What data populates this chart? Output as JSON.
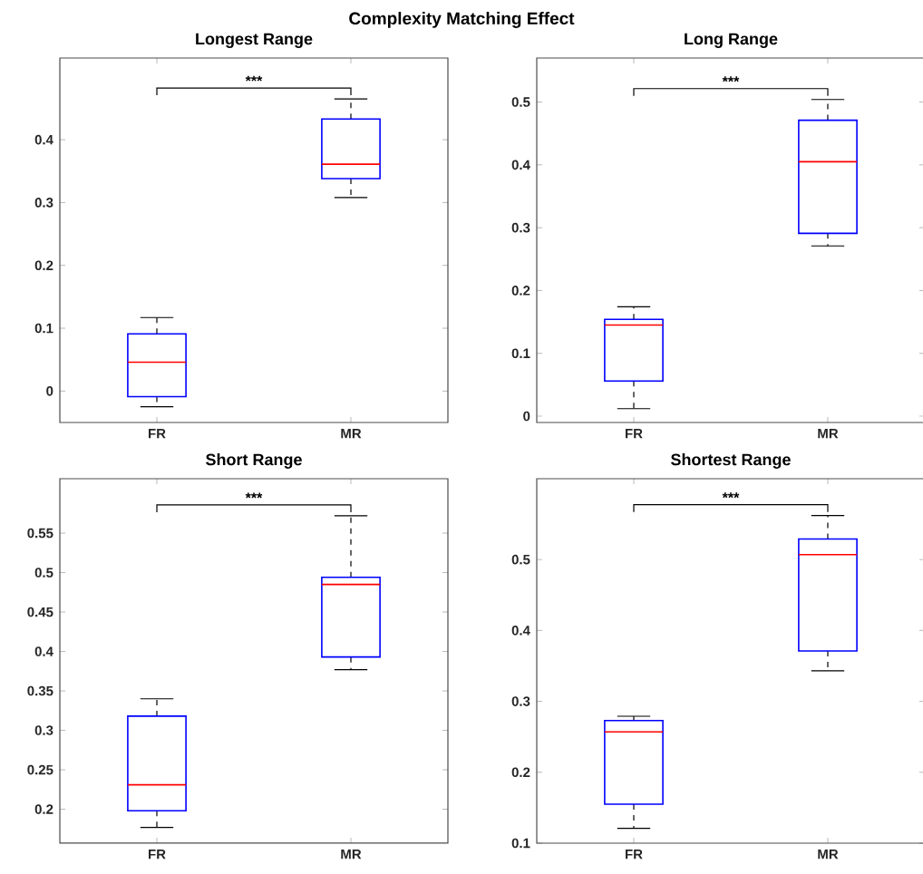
{
  "chart_data": [
    {
      "type": "box",
      "title": "Longest Range",
      "categories": [
        "FR",
        "MR"
      ],
      "color": "#0000ff",
      "ylim": [
        -0.05,
        0.53
      ],
      "yticks": [
        0,
        0.1,
        0.2,
        0.3,
        0.4
      ],
      "boxes": [
        {
          "low": -0.025,
          "q1": -0.009,
          "median": 0.046,
          "q3": 0.091,
          "high": 0.117
        },
        {
          "low": 0.308,
          "q1": 0.338,
          "median": 0.361,
          "q3": 0.433,
          "high": 0.465
        }
      ],
      "annotations": [
        "***"
      ],
      "grid": false
    },
    {
      "type": "box",
      "title": "Long Range",
      "categories": [
        "FR",
        "MR"
      ],
      "color": "#0000ff",
      "ylim": [
        -0.01,
        0.57
      ],
      "yticks": [
        0,
        0.1,
        0.2,
        0.3,
        0.4,
        0.5
      ],
      "boxes": [
        {
          "low": 0.012,
          "q1": 0.056,
          "median": 0.145,
          "q3": 0.154,
          "high": 0.174
        },
        {
          "low": 0.271,
          "q1": 0.291,
          "median": 0.405,
          "q3": 0.471,
          "high": 0.504
        }
      ],
      "annotations": [
        "***"
      ],
      "grid": false
    },
    {
      "type": "box",
      "title": "Short Range",
      "categories": [
        "FR",
        "MR"
      ],
      "color": "#0000ff",
      "ylim": [
        0.157,
        0.619
      ],
      "yticks": [
        0.2,
        0.25,
        0.3,
        0.35,
        0.4,
        0.45,
        0.5,
        0.55
      ],
      "boxes": [
        {
          "low": 0.177,
          "q1": 0.198,
          "median": 0.231,
          "q3": 0.318,
          "high": 0.34
        },
        {
          "low": 0.377,
          "q1": 0.393,
          "median": 0.485,
          "q3": 0.494,
          "high": 0.572
        }
      ],
      "annotations": [
        "***"
      ],
      "grid": false
    },
    {
      "type": "box",
      "title": "Shortest Range",
      "categories": [
        "FR",
        "MR"
      ],
      "color": "#0000ff",
      "ylim": [
        0.1,
        0.614
      ],
      "yticks": [
        0.1,
        0.2,
        0.3,
        0.4,
        0.5
      ],
      "boxes": [
        {
          "low": 0.121,
          "q1": 0.155,
          "median": 0.257,
          "q3": 0.273,
          "high": 0.279
        },
        {
          "low": 0.343,
          "q1": 0.371,
          "median": 0.507,
          "q3": 0.529,
          "high": 0.562
        }
      ],
      "annotations": [
        "***"
      ],
      "grid": false
    },
    {
      "type": "other",
      "title": "Complexity Matching Effect"
    }
  ]
}
